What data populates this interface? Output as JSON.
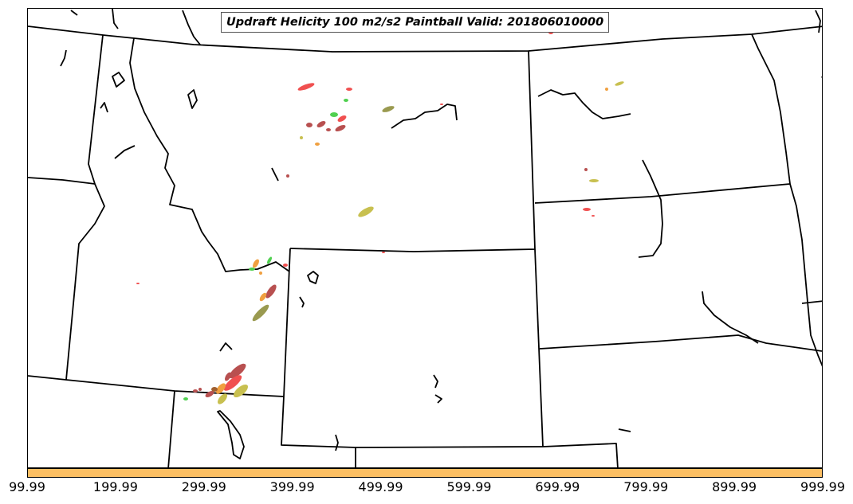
{
  "title": "Updraft Helicity 100 m2/s2 Paintball Valid: 201806010000",
  "colorbar": {
    "color": "#fcbf63",
    "tick_labels": [
      "99.99",
      "199.99",
      "299.99",
      "399.99",
      "499.99",
      "599.99",
      "699.99",
      "799.99",
      "899.99",
      "999.99"
    ]
  },
  "map_colors": {
    "border": "#000000",
    "background": "#ffffff",
    "paintball": [
      "#f05050",
      "#b85050",
      "#9a9a50",
      "#c8c050",
      "#50d050",
      "#f0a040",
      "#a06030"
    ]
  }
}
